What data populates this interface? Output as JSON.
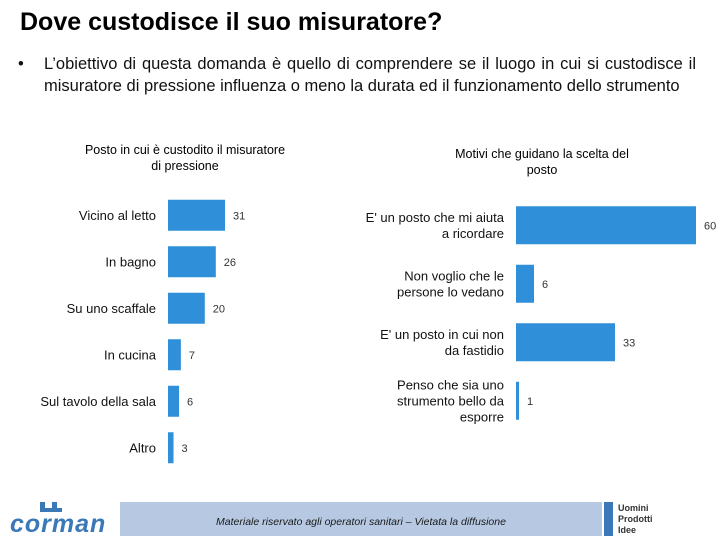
{
  "page": {
    "title": "Dove custodisce il suo misuratore?",
    "bullet_symbol": "•",
    "bullet_text": "L’obiettivo di questa domanda è quello di comprendere se il luogo in cui si custodisce il misuratore di pressione influenza o meno la durata ed il funzionamento dello strumento"
  },
  "footer": {
    "text": "Materiale riservato agli operatori sanitari – Vietata la diffusione",
    "logo_left": "corman",
    "logo_right_lines": [
      "Uomini",
      "Prodotti",
      "Idee"
    ]
  },
  "colors": {
    "bar": "#2f8fd8",
    "footer_band": "#b7c9e2",
    "brand": "#3a78b8"
  },
  "chart_data": [
    {
      "type": "bar",
      "orientation": "horizontal",
      "title": "Posto in cui è custodito il misuratore di pressione",
      "title_lines": [
        "Posto in cui è custodito il misuratore",
        "di pressione"
      ],
      "categories": [
        "Vicino al letto",
        "In bagno",
        "Su uno scaffale",
        "In cucina",
        "Sul tavolo della sala",
        "Altro"
      ],
      "category_lines": [
        [
          "Vicino al letto"
        ],
        [
          "In bagno"
        ],
        [
          "Su uno scaffale"
        ],
        [
          "In cucina"
        ],
        [
          "Sul tavolo della sala"
        ],
        [
          "Altro"
        ]
      ],
      "values": [
        31,
        26,
        20,
        7,
        6,
        3
      ],
      "xlim": [
        0,
        31
      ]
    },
    {
      "type": "bar",
      "orientation": "horizontal",
      "title": "Motivi che guidano la scelta del posto",
      "title_lines": [
        "Motivi che guidano la scelta del",
        "posto"
      ],
      "categories": [
        "E' un posto che mi aiuta a ricordare",
        "Non voglio che le persone lo vedano",
        "E' un posto in cui non da fastidio",
        "Penso che sia uno strumento bello da esporre"
      ],
      "category_lines": [
        [
          "E' un posto che mi aiuta",
          "a ricordare"
        ],
        [
          "Non voglio che le",
          "persone lo vedano"
        ],
        [
          "E' un posto in cui non",
          "da fastidio"
        ],
        [
          "Penso che sia uno",
          "strumento bello da",
          "esporre"
        ]
      ],
      "values": [
        60,
        6,
        33,
        1
      ],
      "xlim": [
        0,
        60
      ]
    }
  ]
}
